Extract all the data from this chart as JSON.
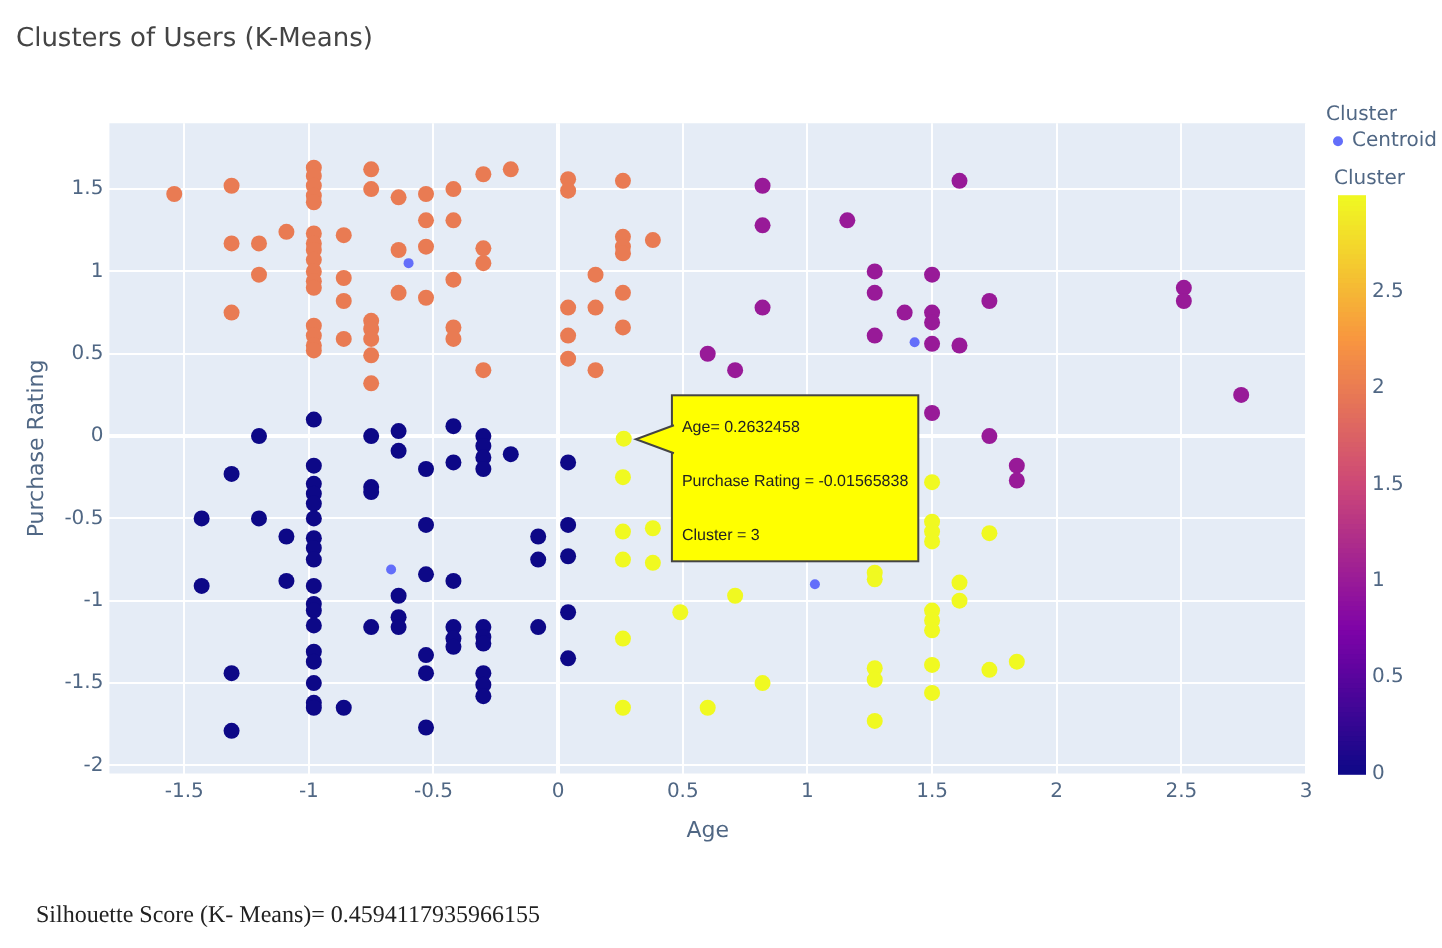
{
  "chart_data": {
    "type": "scatter",
    "title": "Clusters of Users (K-Means)",
    "xlabel": "Age",
    "ylabel": "Purchase Rating",
    "legend_title": "Cluster",
    "clabel": "Cluster",
    "legend": "top right",
    "grid": true,
    "marker": "circle",
    "xlim": [
      -1.8,
      3
    ],
    "xticks": [
      -1.5,
      -1,
      -0.5,
      0,
      0.5,
      1,
      1.5,
      2,
      2.5,
      3
    ],
    "ylim": [
      -2.05,
      1.9
    ],
    "yticks": [
      -2,
      -1.5,
      -1,
      -0.5,
      0,
      0.5,
      1,
      1.5
    ],
    "clim": [
      0,
      3
    ],
    "cticks": [
      0,
      0.5,
      1,
      1.5,
      2,
      2.5
    ],
    "series": [
      {
        "x": [
          -1.54,
          -1.31,
          -1.31,
          -1.31,
          -1.2,
          -1.2,
          -1.09,
          -0.98,
          -0.98,
          -0.98,
          -0.98,
          -0.98,
          -0.98,
          -0.98,
          -0.98,
          -0.98,
          -0.98,
          -0.98,
          -0.98,
          -0.98,
          -0.98,
          -0.98,
          -0.98,
          -0.86,
          -0.86,
          -0.86,
          -0.86,
          -0.75,
          -0.75,
          -0.75,
          -0.75,
          -0.75,
          -0.75,
          -0.75,
          -0.64,
          -0.64,
          -0.64,
          -0.53,
          -0.53,
          -0.53,
          -0.53,
          -0.42,
          -0.42,
          -0.42,
          -0.42,
          -0.42,
          -0.3,
          -0.3,
          -0.3,
          -0.3,
          -0.19,
          0.04,
          0.04,
          0.04,
          0.04,
          0.04,
          0.15,
          0.15,
          0.15,
          0.26,
          0.26,
          0.26,
          0.26,
          0.26,
          0.26,
          0.38
        ],
        "values": [
          1.47,
          1.52,
          1.17,
          0.75,
          1.17,
          0.98,
          1.24,
          1.63,
          1.58,
          1.52,
          1.46,
          1.42,
          1.23,
          1.17,
          1.13,
          1.07,
          1.0,
          0.94,
          0.9,
          0.67,
          0.61,
          0.55,
          0.52,
          1.22,
          0.96,
          0.82,
          0.59,
          1.62,
          1.5,
          0.7,
          0.65,
          0.59,
          0.49,
          0.32,
          1.45,
          1.13,
          0.87,
          1.47,
          1.31,
          1.15,
          0.84,
          1.5,
          1.31,
          0.95,
          0.66,
          0.59,
          1.59,
          1.14,
          1.05,
          0.4,
          1.62,
          1.56,
          1.49,
          0.78,
          0.61,
          0.47,
          0.98,
          0.78,
          0.4,
          1.55,
          1.21,
          1.15,
          1.11,
          0.87,
          0.66,
          1.19
        ],
        "cvalues": [
          2,
          2,
          2,
          2,
          2,
          2,
          2,
          2,
          2,
          2,
          2,
          2,
          2,
          2,
          2,
          2,
          2,
          2,
          2,
          2,
          2,
          2,
          2,
          2,
          2,
          2,
          2,
          2,
          2,
          2,
          2,
          2,
          2,
          2,
          2,
          2,
          2,
          2,
          2,
          2,
          2,
          2,
          2,
          2,
          2,
          2,
          2,
          2,
          2,
          2,
          2,
          2,
          2,
          2,
          2,
          2,
          2,
          2,
          2,
          2,
          2,
          2,
          2,
          2,
          2,
          2
        ]
      },
      {
        "x": [
          0.82,
          0.82,
          0.82,
          0.6,
          0.71,
          1.16,
          1.27,
          1.27,
          1.27,
          1.39,
          1.5,
          1.5,
          1.5,
          1.5,
          1.5,
          1.61,
          1.61,
          1.73,
          1.73,
          2.51,
          2.51,
          2.74,
          1.84,
          1.84
        ],
        "values": [
          1.52,
          1.28,
          0.78,
          0.5,
          0.4,
          1.31,
          1.0,
          0.87,
          0.61,
          0.75,
          0.98,
          0.75,
          0.69,
          0.56,
          0.14,
          1.55,
          0.55,
          0.82,
          0.0,
          0.9,
          0.82,
          0.25,
          -0.18,
          -0.27
        ],
        "cvalues": [
          1,
          1,
          1,
          1,
          1,
          1,
          1,
          1,
          1,
          1,
          1,
          1,
          1,
          1,
          1,
          1,
          1,
          1,
          1,
          1,
          1,
          1,
          1,
          1
        ]
      },
      {
        "x": [
          0.2632458,
          0.26,
          0.26,
          0.26,
          0.26,
          0.26,
          0.38,
          0.38,
          0.49,
          0.71,
          0.82,
          0.6,
          1.27,
          1.27,
          1.27,
          1.27,
          1.27,
          1.5,
          1.5,
          1.5,
          1.5,
          1.5,
          1.5,
          1.5,
          1.5,
          1.5,
          1.73,
          1.73,
          1.61,
          1.61,
          1.84
        ],
        "values": [
          -0.01565838,
          -0.25,
          -0.58,
          -0.75,
          -1.23,
          -1.65,
          -0.56,
          -0.77,
          -1.07,
          -0.97,
          -1.5,
          -1.65,
          -0.83,
          -0.87,
          -1.41,
          -1.48,
          -1.73,
          -0.28,
          -0.52,
          -0.58,
          -0.64,
          -1.06,
          -1.12,
          -1.18,
          -1.39,
          -1.56,
          -0.59,
          -1.42,
          -0.89,
          -1.0,
          -1.37
        ],
        "cvalues": [
          3,
          3,
          3,
          3,
          3,
          3,
          3,
          3,
          3,
          3,
          3,
          3,
          3,
          3,
          3,
          3,
          3,
          3,
          3,
          3,
          3,
          3,
          3,
          3,
          3,
          3,
          3,
          3,
          3,
          3,
          3
        ]
      },
      {
        "x": [
          -1.43,
          -1.43,
          -1.31,
          -1.31,
          -1.31,
          -1.2,
          -1.2,
          -1.09,
          -1.09,
          -0.98,
          -0.98,
          -0.98,
          -0.98,
          -0.98,
          -0.98,
          -0.98,
          -0.98,
          -0.98,
          -0.98,
          -0.98,
          -0.98,
          -0.98,
          -0.98,
          -0.98,
          -0.98,
          -0.98,
          -0.98,
          -0.86,
          -0.75,
          -0.75,
          -0.75,
          -0.75,
          -0.64,
          -0.64,
          -0.64,
          -0.64,
          -0.64,
          -0.53,
          -0.53,
          -0.53,
          -0.53,
          -0.53,
          -0.53,
          -0.42,
          -0.42,
          -0.42,
          -0.42,
          -0.42,
          -0.42,
          -0.3,
          -0.3,
          -0.3,
          -0.3,
          -0.3,
          -0.3,
          -0.3,
          -0.3,
          -0.3,
          -0.3,
          -0.19,
          -0.08,
          -0.08,
          -0.08,
          0.04,
          0.04,
          0.04,
          0.04,
          0.04
        ],
        "values": [
          -0.5,
          -0.91,
          -0.23,
          -1.44,
          -1.79,
          0.0,
          -0.5,
          -0.61,
          -0.88,
          0.1,
          -0.18,
          -0.29,
          -0.35,
          -0.41,
          -0.5,
          -0.62,
          -0.68,
          -0.75,
          -0.91,
          -1.02,
          -1.06,
          -1.15,
          -1.31,
          -1.37,
          -1.5,
          -1.62,
          -1.65,
          -1.65,
          0.0,
          -0.31,
          -0.34,
          -1.16,
          0.03,
          -0.09,
          -0.97,
          -1.1,
          -1.16,
          -0.2,
          -0.54,
          -0.84,
          -1.33,
          -1.44,
          -1.77,
          0.06,
          -0.16,
          -0.88,
          -1.16,
          -1.23,
          -1.28,
          0.0,
          -0.06,
          -0.13,
          -0.2,
          -1.16,
          -1.22,
          -1.26,
          -1.44,
          -1.51,
          -1.58,
          -0.11,
          -0.61,
          -0.75,
          -1.16,
          -0.16,
          -0.54,
          -0.73,
          -1.07,
          -1.35
        ],
        "cvalues": [
          0,
          0,
          0,
          0,
          0,
          0,
          0,
          0,
          0,
          0,
          0,
          0,
          0,
          0,
          0,
          0,
          0,
          0,
          0,
          0,
          0,
          0,
          0,
          0,
          0,
          0,
          0,
          0,
          0,
          0,
          0,
          0,
          0,
          0,
          0,
          0,
          0,
          0,
          0,
          0,
          0,
          0,
          0,
          0,
          0,
          0,
          0,
          0,
          0,
          0,
          0,
          0,
          0,
          0,
          0,
          0,
          0,
          0,
          0,
          0,
          0,
          0,
          0,
          0,
          0,
          0,
          0,
          0
        ]
      },
      {
        "name": "Centroid",
        "color": "#636efa",
        "x": [
          -0.6,
          1.43,
          -0.67,
          1.03
        ],
        "values": [
          1.05,
          0.57,
          -0.81,
          -0.9
        ]
      }
    ],
    "annotations": [
      "Age= 0.2632458",
      "Purchase Rating = -0.01565838",
      "Cluster = 3",
      "Silhouette Score (K- Means)= 0.4594117935966155"
    ]
  }
}
